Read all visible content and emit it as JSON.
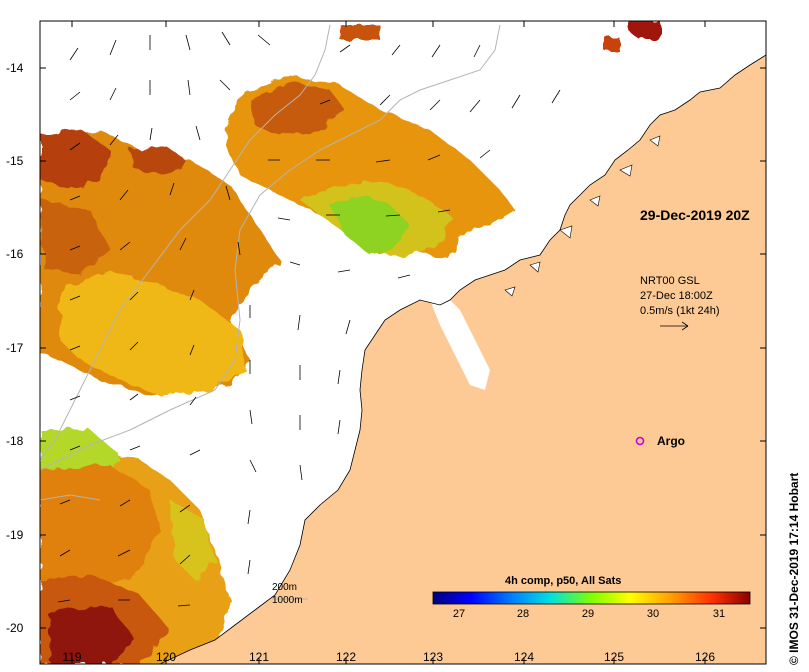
{
  "date_label": "29-Dec-2019 20Z",
  "wind_info": {
    "line1": "NRT00 GSL",
    "line2": "27-Dec 18:00Z",
    "line3": "0.5m/s (1kt 24h)"
  },
  "bathymetry": {
    "contour1": "200m",
    "contour2": "1000m"
  },
  "argo_label": "Argo",
  "colorbar": {
    "title": "4h comp, p50, All Sats",
    "ticks": [
      "27",
      "28",
      "29",
      "30",
      "31"
    ]
  },
  "axis": {
    "y_ticks": [
      "-14",
      "-15",
      "-16",
      "-17",
      "-18",
      "-19",
      "-20"
    ],
    "x_ticks": [
      "119",
      "120",
      "121",
      "122",
      "123",
      "124",
      "125",
      "126"
    ]
  },
  "credit": "© IMOS 31-Dec-2019 17:14 Hobart",
  "colors": {
    "land": "#fdca96",
    "argo": "#cc00cc",
    "contour": "#b4b4b4"
  }
}
